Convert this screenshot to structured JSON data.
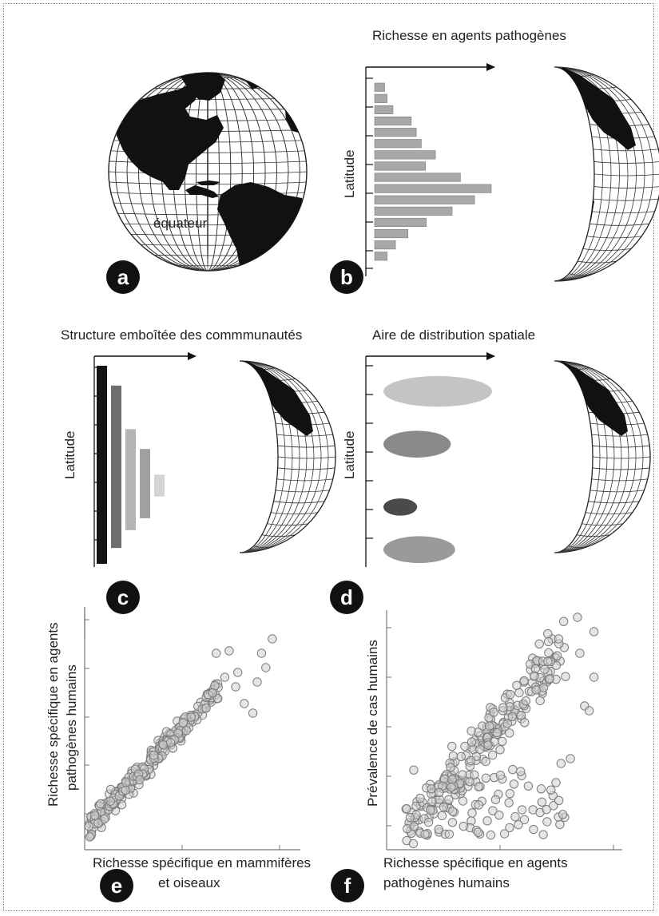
{
  "panels": {
    "a": {
      "badge": "a",
      "equator_label": "équateur"
    },
    "b": {
      "badge": "b",
      "title": "Richesse en agents pathogènes",
      "ylabel": "Latitude"
    },
    "c": {
      "badge": "c",
      "title": "Structure emboîtée des commmunautés",
      "ylabel": "Latitude"
    },
    "d": {
      "badge": "d",
      "title": "Aire de distribution spatiale",
      "ylabel": "Latitude"
    },
    "e": {
      "badge": "e",
      "ylabel_line1": "Richesse spécifique en agents",
      "ylabel_line2": "pathogènes humains",
      "xlabel_line1": "Richesse spécifique en mammifères",
      "xlabel_line2": "et oiseaux"
    },
    "f": {
      "badge": "f",
      "ylabel": "Prévalence de cas humains",
      "xlabel_line1": "Richesse spécifique en agents",
      "xlabel_line2": "pathogènes humains"
    }
  },
  "colors": {
    "land": "#111111",
    "grid": "#222222",
    "bar": "#a8a8a8",
    "point_fill": "#cfcfcf",
    "point_stroke": "#7a7a7a",
    "badge": "#111111"
  },
  "chart_data": [
    {
      "id": "b",
      "type": "bar",
      "orientation": "horizontal",
      "title": "Richesse en agents pathogènes",
      "ylabel": "Latitude",
      "values": [
        1.2,
        1.5,
        2.2,
        4.4,
        5.0,
        5.6,
        7.3,
        6.1,
        10.3,
        14.0,
        12.0,
        9.3,
        6.2,
        4.0,
        2.5,
        1.5
      ]
    },
    {
      "id": "c",
      "type": "bar",
      "orientation": "vertical",
      "title": "Structure emboîtée des commmunautés",
      "ylabel": "Latitude",
      "bars": [
        {
          "top": 1.0,
          "bottom": 0.0,
          "shade": "#141414"
        },
        {
          "top": 0.9,
          "bottom": 0.08,
          "shade": "#6e6e6e"
        },
        {
          "top": 0.68,
          "bottom": 0.17,
          "shade": "#b4b4b4"
        },
        {
          "top": 0.58,
          "bottom": 0.23,
          "shade": "#a0a0a0"
        },
        {
          "top": 0.45,
          "bottom": 0.34,
          "shade": "#d4d4d4"
        }
      ]
    },
    {
      "id": "d",
      "type": "scatter",
      "title": "Aire de distribution spatiale",
      "ylabel": "Latitude",
      "ranges": [
        {
          "lat": 0.85,
          "width": 1.0,
          "height": 0.16,
          "shade": "#c4c4c4"
        },
        {
          "lat": 0.59,
          "width": 0.62,
          "height": 0.14,
          "shade": "#8a8a8a"
        },
        {
          "lat": 0.28,
          "width": 0.31,
          "height": 0.09,
          "shade": "#4a4a4a"
        },
        {
          "lat": 0.07,
          "width": 0.66,
          "height": 0.14,
          "shade": "#9a9a9a"
        }
      ]
    },
    {
      "id": "e",
      "type": "scatter",
      "ylabel": "Richesse spécifique en agents pathogènes humains",
      "xlabel": "Richesse spécifique en mammifères et oiseaux",
      "n_points": 260,
      "highlight_points": [
        [
          0.87,
          0.88
        ],
        [
          0.82,
          0.82
        ],
        [
          0.84,
          0.76
        ],
        [
          0.8,
          0.7
        ],
        [
          0.71,
          0.74
        ],
        [
          0.67,
          0.83
        ],
        [
          0.61,
          0.82
        ],
        [
          0.65,
          0.72
        ],
        [
          0.7,
          0.68
        ],
        [
          0.74,
          0.61
        ],
        [
          0.78,
          0.57
        ]
      ]
    },
    {
      "id": "f",
      "type": "scatter",
      "ylabel": "Prévalence de cas humains",
      "xlabel": "Richesse spécifique en agents pathogènes humains",
      "n_points": 300,
      "highlight_points": [
        [
          0.88,
          0.91
        ],
        [
          0.81,
          0.97
        ],
        [
          0.73,
          0.88
        ],
        [
          0.82,
          0.82
        ],
        [
          0.88,
          0.72
        ],
        [
          0.84,
          0.6
        ],
        [
          0.74,
          0.36
        ],
        [
          0.78,
          0.38
        ],
        [
          0.86,
          0.58
        ]
      ]
    }
  ]
}
